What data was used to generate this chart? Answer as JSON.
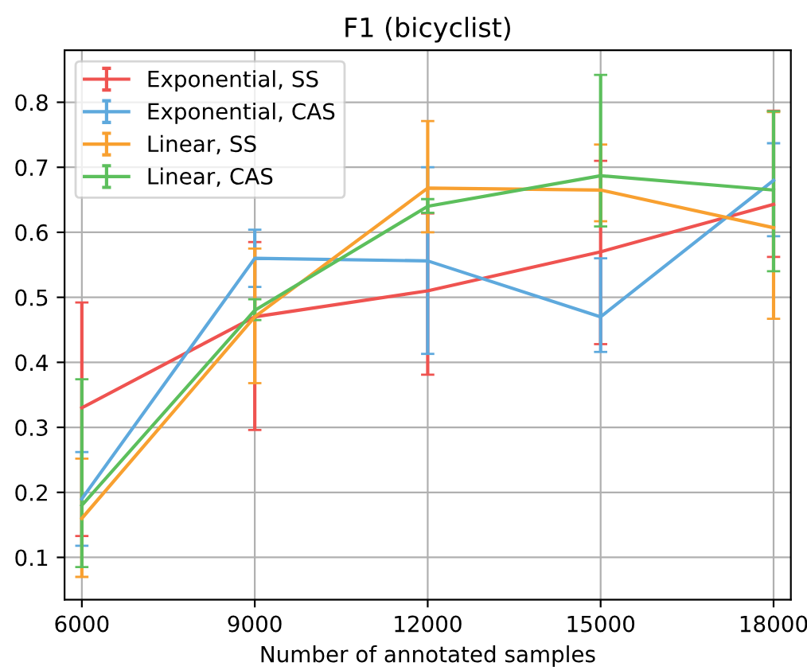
{
  "chart_data": {
    "type": "line",
    "title": "F1 (bicyclist)",
    "xlabel": "Number of annotated samples",
    "x": [
      6000,
      9000,
      12000,
      15000,
      18000
    ],
    "xlim": [
      5700,
      18300
    ],
    "xticks": [
      6000,
      9000,
      12000,
      15000,
      18000
    ],
    "ylim": [
      0.035,
      0.88
    ],
    "yticks": [
      0.1,
      0.2,
      0.3,
      0.4,
      0.5,
      0.6,
      0.7,
      0.8
    ],
    "grid": true,
    "legend": "top left",
    "marker": "none",
    "line_style": "solid",
    "series": [
      {
        "name": "Exponential, SS",
        "color": "#ef5350",
        "values": [
          0.33,
          0.47,
          0.51,
          0.57,
          0.643
        ],
        "errors": [
          [
            0.133,
            0.492
          ],
          [
            0.296,
            0.585
          ],
          [
            0.381,
            0.629
          ],
          [
            0.428,
            0.71
          ],
          [
            0.562,
            0.787
          ]
        ]
      },
      {
        "name": "Exponential, CAS",
        "color": "#5ea9dd",
        "values": [
          0.19,
          0.56,
          0.556,
          0.47,
          0.68
        ],
        "errors": [
          [
            0.118,
            0.262
          ],
          [
            0.516,
            0.604
          ],
          [
            0.413,
            0.7
          ],
          [
            0.416,
            0.56
          ],
          [
            0.594,
            0.737
          ]
        ]
      },
      {
        "name": "Linear, SS",
        "color": "#f8a030",
        "values": [
          0.16,
          0.47,
          0.668,
          0.665,
          0.607
        ],
        "errors": [
          [
            0.07,
            0.252
          ],
          [
            0.368,
            0.575
          ],
          [
            0.6,
            0.771
          ],
          [
            0.617,
            0.735
          ],
          [
            0.467,
            0.785
          ]
        ]
      },
      {
        "name": "Linear, CAS",
        "color": "#5cbf5c",
        "values": [
          0.18,
          0.48,
          0.64,
          0.687,
          0.665
        ],
        "errors": [
          [
            0.085,
            0.374
          ],
          [
            0.465,
            0.497
          ],
          [
            0.63,
            0.651
          ],
          [
            0.609,
            0.842
          ],
          [
            0.54,
            0.786
          ]
        ]
      }
    ]
  }
}
